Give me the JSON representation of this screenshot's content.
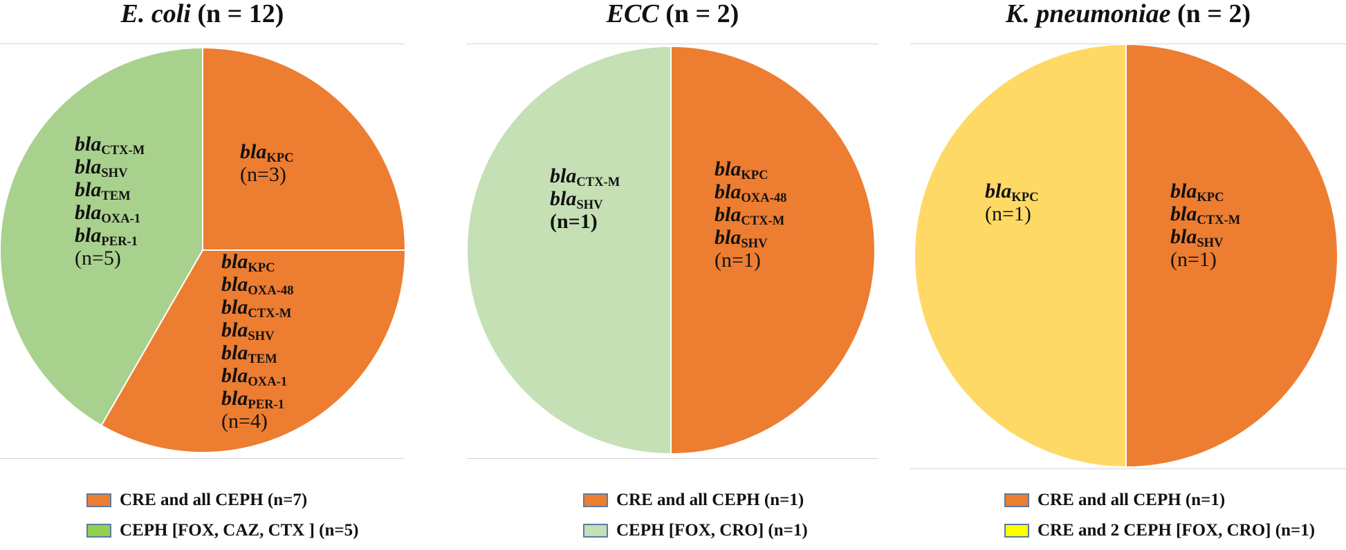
{
  "chart_data": [
    {
      "type": "pie",
      "title": {
        "organism": "E. coli",
        "n_text": " (n = 12)"
      },
      "slices": [
        {
          "value": 3,
          "color": "#ED7D31",
          "genes": [
            {
              "base": "bla",
              "sub": "KPC"
            }
          ],
          "count_label": "(n=3)"
        },
        {
          "value": 4,
          "color": "#ED7D31",
          "genes": [
            {
              "base": "bla",
              "sub": "KPC"
            },
            {
              "base": "bla",
              "sub": "OXA-48"
            },
            {
              "base": "bla",
              "sub": "CTX-M"
            },
            {
              "base": "bla",
              "sub": "SHV"
            },
            {
              "base": "bla",
              "sub": "TEM"
            },
            {
              "base": "bla",
              "sub": "OXA-1"
            },
            {
              "base": "bla",
              "sub": "PER-1"
            }
          ],
          "count_label": "(n=4)"
        },
        {
          "value": 5,
          "color": "#A9D18E",
          "genes": [
            {
              "base": "bla",
              "sub": "CTX-M"
            },
            {
              "base": "bla",
              "sub": "SHV"
            },
            {
              "base": "bla",
              "sub": "TEM"
            },
            {
              "base": "bla",
              "sub": "OXA-1"
            },
            {
              "base": "bla",
              "sub": "PER-1"
            }
          ],
          "count_label": "(n=5)"
        }
      ],
      "legend": [
        {
          "color": "#ED7D31",
          "label": "CRE and all CEPH (n=7)"
        },
        {
          "color": "#92D050",
          "label": "CEPH [FOX, CAZ, CTX ] (n=5)"
        }
      ]
    },
    {
      "type": "pie",
      "title": {
        "organism": "ECC",
        "n_text": " (n = 2)"
      },
      "slices": [
        {
          "value": 1,
          "color": "#ED7D31",
          "genes": [
            {
              "base": "bla",
              "sub": "KPC"
            },
            {
              "base": "bla",
              "sub": "OXA-48"
            },
            {
              "base": "bla",
              "sub": "CTX-M"
            },
            {
              "base": "bla",
              "sub": "SHV"
            }
          ],
          "count_label": "(n=1)"
        },
        {
          "value": 1,
          "color": "#C5E0B4",
          "genes": [
            {
              "base": "bla",
              "sub": "CTX-M"
            },
            {
              "base": "bla",
              "sub": "SHV"
            }
          ],
          "count_label": "(n=1)"
        }
      ],
      "legend": [
        {
          "color": "#ED7D31",
          "label": "CRE and all CEPH (n=1)"
        },
        {
          "color": "#C5E0B4",
          "label": "CEPH [FOX, CRO] (n=1)"
        }
      ]
    },
    {
      "type": "pie",
      "title": {
        "organism": "K. pneumoniae",
        "n_text": " (n = 2)"
      },
      "slices": [
        {
          "value": 1,
          "color": "#ED7D31",
          "genes": [
            {
              "base": "bla",
              "sub": "KPC"
            },
            {
              "base": "bla",
              "sub": "CTX-M"
            },
            {
              "base": "bla",
              "sub": "SHV"
            }
          ],
          "count_label": "(n=1)"
        },
        {
          "value": 1,
          "color": "#FFD966",
          "genes": [
            {
              "base": "bla",
              "sub": "KPC"
            }
          ],
          "count_label": "(n=1)"
        }
      ],
      "legend": [
        {
          "color": "#ED7D31",
          "label": "CRE and all CEPH (n=1)"
        },
        {
          "color": "#FFFF00",
          "label": "CRE and 2 CEPH [FOX, CRO] (n=1)"
        }
      ]
    }
  ]
}
